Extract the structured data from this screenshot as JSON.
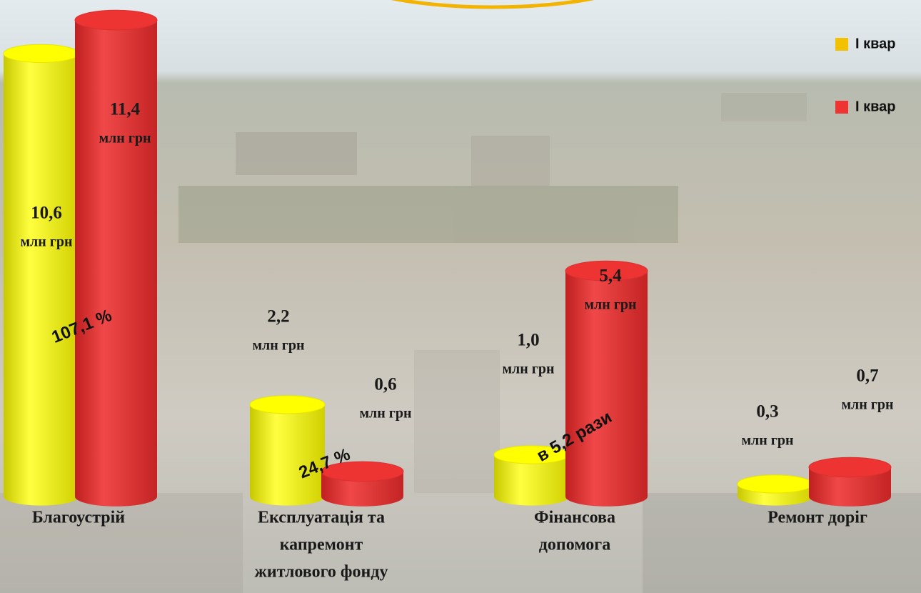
{
  "chart_data": {
    "type": "bar",
    "categories": [
      [
        "Благоустрій"
      ],
      [
        "Експлуатація та",
        "капремонт",
        "житлового фонду"
      ],
      [
        "Фінансова",
        "допомога"
      ],
      [
        "Ремонт доріг"
      ]
    ],
    "unit": "млн грн",
    "series": [
      {
        "name": "І квар",
        "color": "#ffff00",
        "values": [
          10.6,
          2.2,
          1.0,
          0.3
        ],
        "value_labels": [
          "10,6",
          "2,2",
          "1,0",
          "0,3"
        ]
      },
      {
        "name": "І квар",
        "color": "#ee3333",
        "values": [
          11.4,
          0.6,
          5.4,
          0.7
        ],
        "value_labels": [
          "11,4",
          "0,6",
          "5,4",
          "0,7"
        ]
      }
    ],
    "annotations": [
      "107,1 %",
      "24,7 %",
      "в 5,2 рази"
    ]
  }
}
